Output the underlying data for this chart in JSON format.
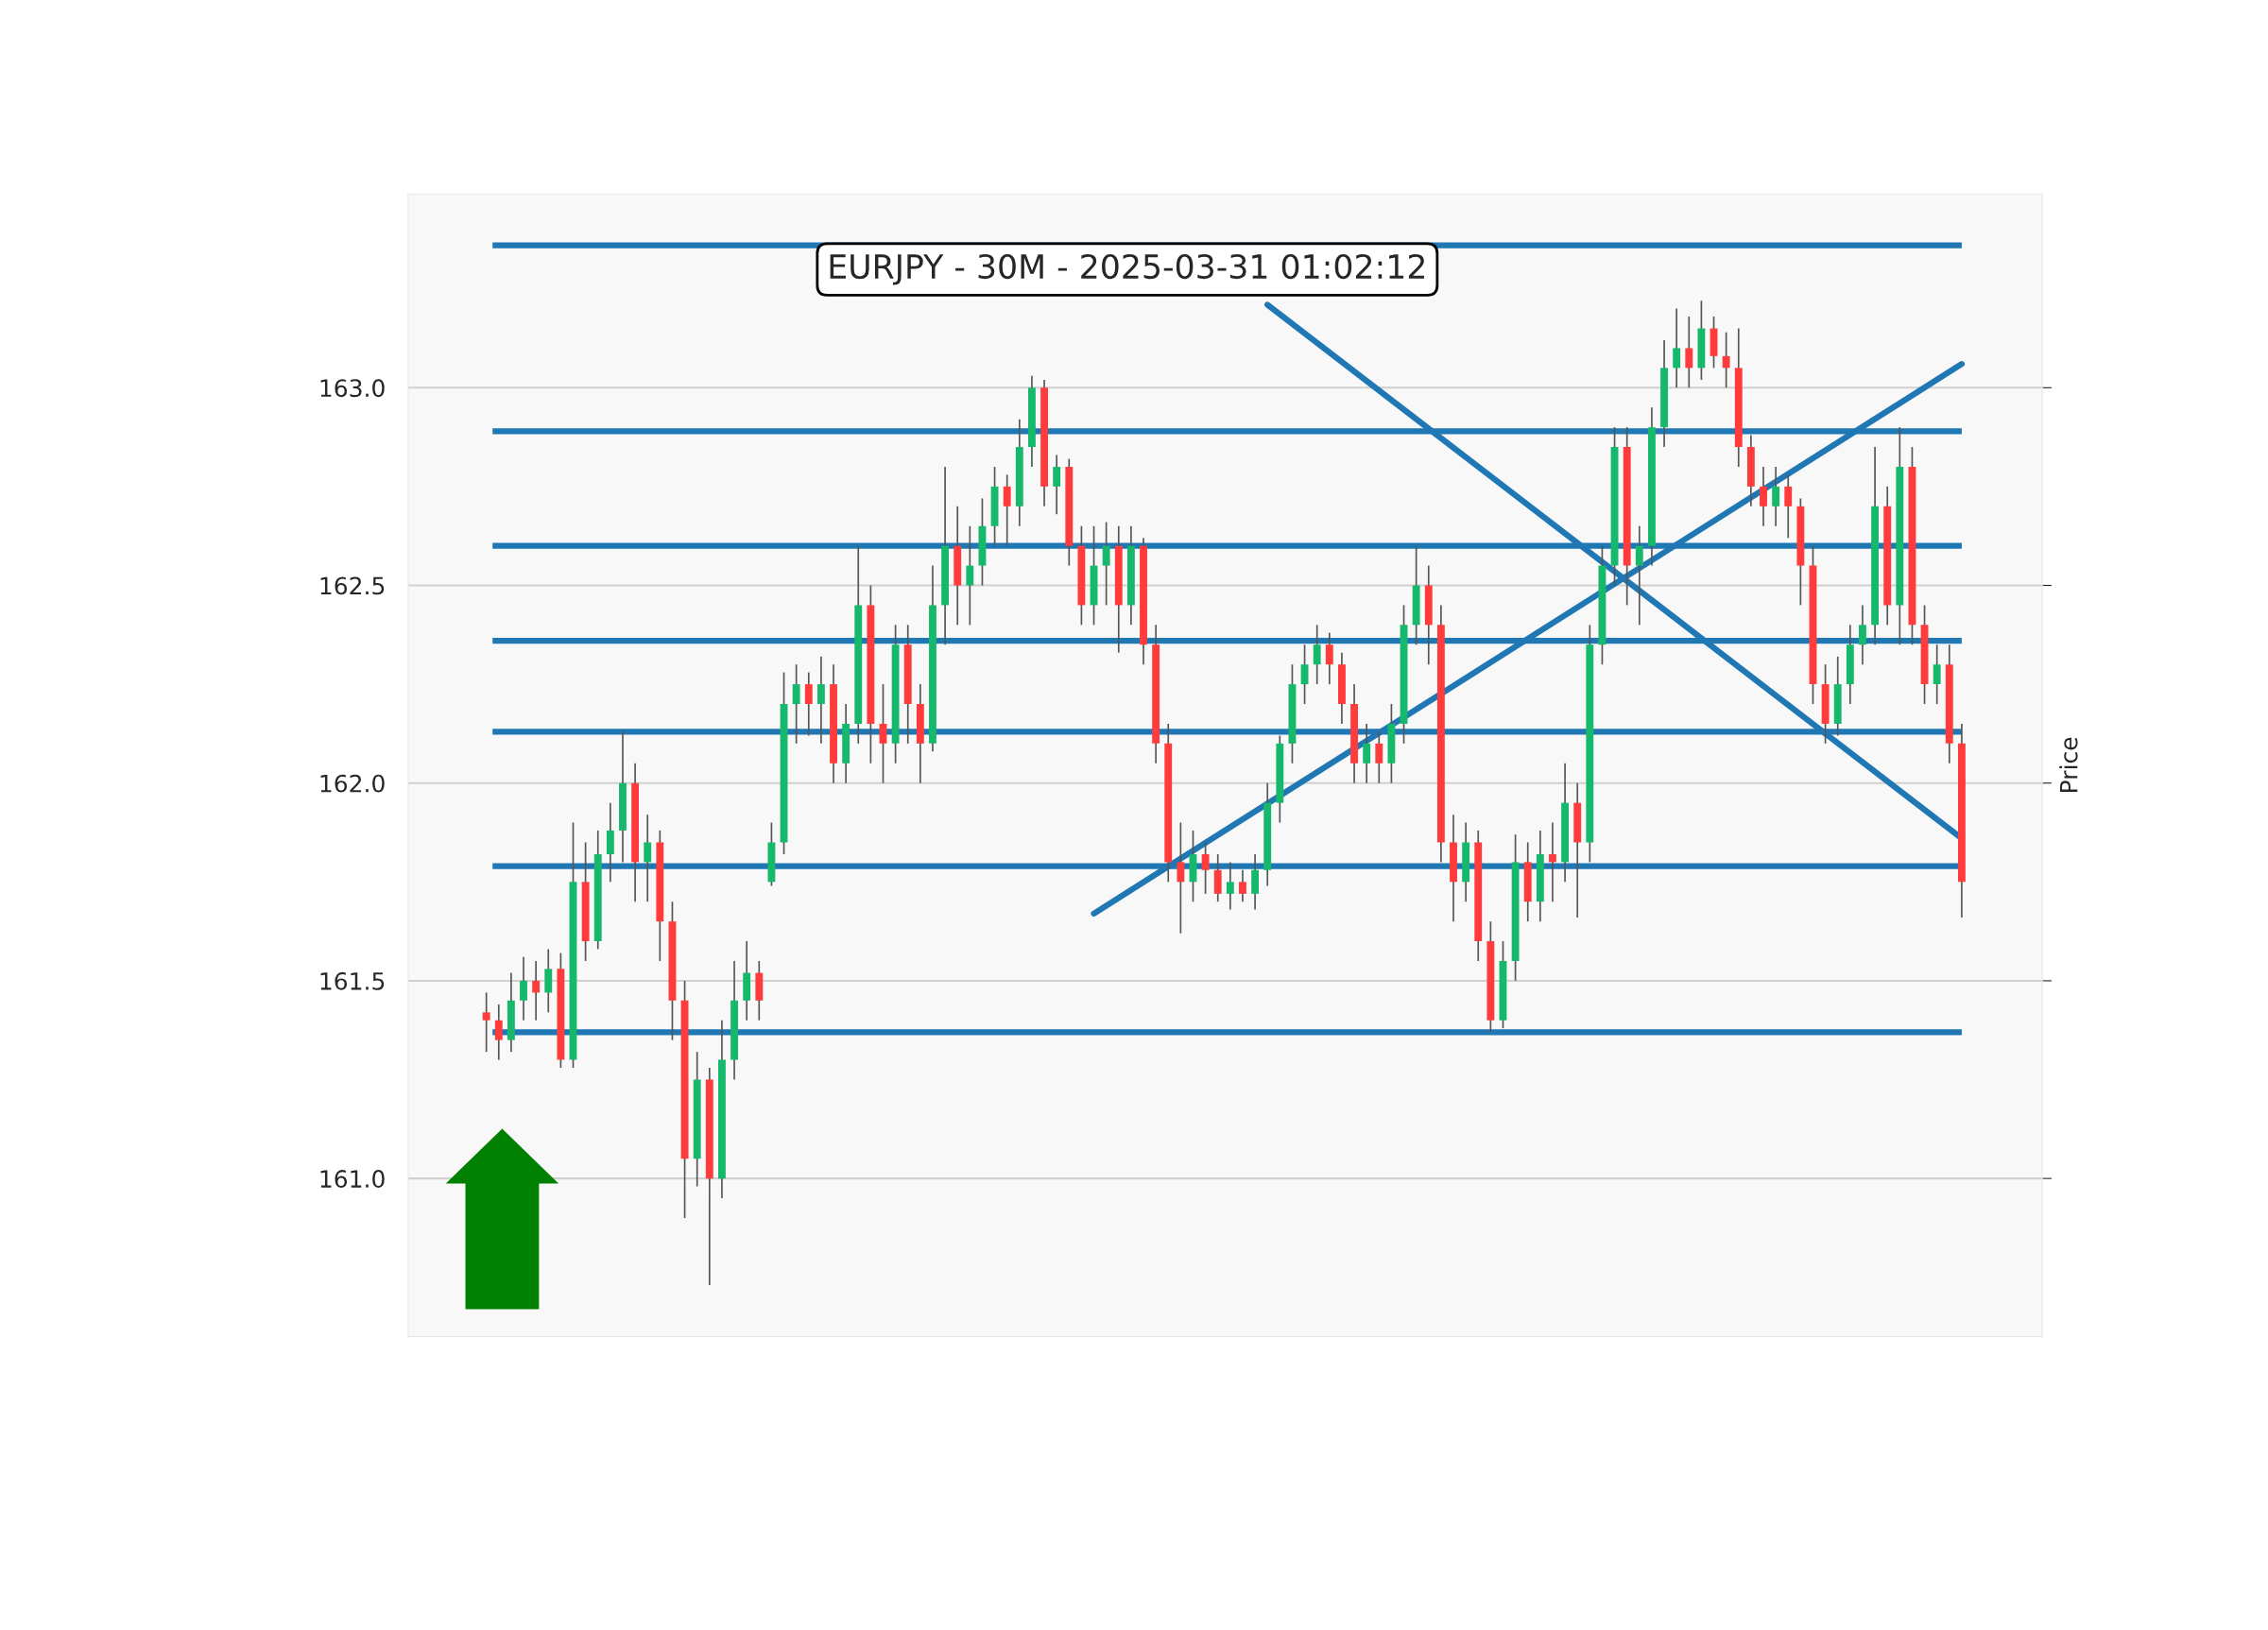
{
  "chart_data": {
    "type": "candlestick",
    "title": "EURJPY - 30M - 2025-03-31 01:02:12",
    "ylabel": "Price",
    "categories": [
      null,
      null,
      null,
      null,
      null,
      null,
      null,
      null,
      null,
      null,
      null,
      null,
      null,
      null,
      null,
      null,
      null,
      null,
      null,
      null,
      null,
      null,
      null,
      null,
      null,
      null,
      null,
      null,
      null,
      null,
      null,
      null,
      null,
      null,
      null,
      null,
      null,
      null,
      null,
      null,
      null,
      null,
      null,
      null,
      null,
      null,
      null,
      null,
      null,
      null,
      null,
      null,
      null,
      null,
      null,
      null,
      null,
      null,
      null,
      null,
      null,
      null,
      null,
      null,
      null,
      null,
      null,
      null,
      null,
      null,
      null,
      null,
      null,
      null,
      null,
      null,
      null,
      null,
      null,
      null,
      null,
      null,
      null,
      null,
      null,
      null,
      null,
      null,
      null,
      null,
      null,
      null,
      null,
      null,
      null,
      null,
      null,
      null,
      null,
      null,
      null,
      null,
      null,
      null,
      null,
      null,
      null,
      null,
      null,
      null,
      null,
      null,
      null,
      null,
      null,
      null,
      null,
      null,
      null,
      null
    ],
    "colors": [
      "#ff3b3b",
      "#ff3b3b",
      "#16b86b",
      "#16b86b",
      "#ff3b3b",
      "#16b86b",
      "#ff3b3b",
      "#16b86b",
      "#ff3b3b",
      "#16b86b",
      "#16b86b",
      "#16b86b",
      "#ff3b3b",
      "#16b86b",
      "#ff3b3b",
      "#ff3b3b",
      "#ff3b3b",
      "#16b86b",
      "#ff3b3b",
      "#16b86b",
      "#16b86b",
      "#16b86b",
      "#ff3b3b",
      "#16b86b",
      "#16b86b",
      "#16b86b",
      "#ff3b3b",
      "#16b86b",
      "#ff3b3b",
      "#16b86b",
      "#16b86b",
      "#ff3b3b",
      "#ff3b3b",
      "#16b86b",
      "#ff3b3b",
      "#ff3b3b",
      "#16b86b",
      "#16b86b",
      "#ff3b3b",
      "#16b86b",
      "#16b86b",
      "#16b86b",
      "#ff3b3b",
      "#16b86b",
      "#16b86b",
      "#ff3b3b",
      "#16b86b",
      "#ff3b3b",
      "#ff3b3b",
      "#16b86b",
      "#16b86b",
      "#ff3b3b",
      "#16b86b",
      "#ff3b3b",
      "#ff3b3b",
      "#ff3b3b",
      "#ff3b3b",
      "#16b86b",
      "#ff3b3b",
      "#ff3b3b",
      "#16b86b",
      "#ff3b3b",
      "#16b86b",
      "#16b86b",
      "#16b86b",
      "#16b86b",
      "#16b86b",
      "#16b86b",
      "#ff3b3b",
      "#ff3b3b",
      "#ff3b3b",
      "#16b86b",
      "#ff3b3b",
      "#16b86b",
      "#16b86b",
      "#16b86b",
      "#ff3b3b",
      "#ff3b3b",
      "#ff3b3b",
      "#16b86b",
      "#ff3b3b",
      "#ff3b3b",
      "#16b86b",
      "#16b86b",
      "#ff3b3b",
      "#16b86b",
      "#ff3b3b",
      "#16b86b",
      "#ff3b3b",
      "#16b86b",
      "#16b86b",
      "#16b86b",
      "#ff3b3b",
      "#16b86b",
      "#16b86b",
      "#16b86b",
      "#16b86b",
      "#ff3b3b",
      "#16b86b",
      "#ff3b3b",
      "#ff3b3b",
      "#ff3b3b",
      "#ff3b3b",
      "#ff3b3b",
      "#16b86b",
      "#ff3b3b",
      "#ff3b3b",
      "#ff3b3b",
      "#ff3b3b",
      "#16b86b",
      "#16b86b",
      "#16b86b",
      "#16b86b",
      "#ff3b3b",
      "#16b86b",
      "#ff3b3b",
      "#ff3b3b",
      "#16b86b",
      "#ff3b3b",
      "#ff3b3b"
    ],
    "ohlc": [
      [
        161.42,
        161.47,
        161.32,
        161.4
      ],
      [
        161.4,
        161.44,
        161.3,
        161.35
      ],
      [
        161.35,
        161.52,
        161.32,
        161.45
      ],
      [
        161.45,
        161.56,
        161.4,
        161.5
      ],
      [
        161.5,
        161.55,
        161.4,
        161.47
      ],
      [
        161.47,
        161.58,
        161.42,
        161.53
      ],
      [
        161.53,
        161.57,
        161.28,
        161.3
      ],
      [
        161.3,
        161.9,
        161.28,
        161.75
      ],
      [
        161.75,
        161.85,
        161.55,
        161.6
      ],
      [
        161.6,
        161.88,
        161.58,
        161.82
      ],
      [
        161.82,
        161.95,
        161.75,
        161.88
      ],
      [
        161.88,
        162.13,
        161.8,
        162.0
      ],
      [
        162.0,
        162.05,
        161.7,
        161.8
      ],
      [
        161.8,
        161.92,
        161.7,
        161.85
      ],
      [
        161.85,
        161.88,
        161.55,
        161.65
      ],
      [
        161.65,
        161.7,
        161.35,
        161.45
      ],
      [
        161.45,
        161.5,
        160.9,
        161.05
      ],
      [
        161.05,
        161.32,
        160.98,
        161.25
      ],
      [
        161.25,
        161.28,
        160.73,
        161.0
      ],
      [
        161.0,
        161.4,
        160.95,
        161.3
      ],
      [
        161.3,
        161.55,
        161.25,
        161.45
      ],
      [
        161.45,
        161.6,
        161.4,
        161.52
      ],
      [
        161.52,
        161.55,
        161.4,
        161.45
      ],
      [
        161.75,
        161.9,
        161.74,
        161.85
      ],
      [
        161.85,
        162.28,
        161.82,
        162.2
      ],
      [
        162.2,
        162.3,
        162.1,
        162.25
      ],
      [
        162.25,
        162.28,
        162.12,
        162.2
      ],
      [
        162.2,
        162.32,
        162.1,
        162.25
      ],
      [
        162.25,
        162.3,
        162.0,
        162.05
      ],
      [
        162.05,
        162.2,
        162.0,
        162.15
      ],
      [
        162.15,
        162.6,
        162.1,
        162.45
      ],
      [
        162.45,
        162.5,
        162.05,
        162.15
      ],
      [
        162.15,
        162.25,
        162.0,
        162.1
      ],
      [
        162.1,
        162.4,
        162.05,
        162.35
      ],
      [
        162.35,
        162.4,
        162.1,
        162.2
      ],
      [
        162.2,
        162.25,
        162.0,
        162.1
      ],
      [
        162.1,
        162.55,
        162.08,
        162.45
      ],
      [
        162.45,
        162.8,
        162.35,
        162.6
      ],
      [
        162.6,
        162.7,
        162.4,
        162.5
      ],
      [
        162.5,
        162.65,
        162.4,
        162.55
      ],
      [
        162.55,
        162.72,
        162.5,
        162.65
      ],
      [
        162.65,
        162.8,
        162.6,
        162.75
      ],
      [
        162.75,
        162.78,
        162.6,
        162.7
      ],
      [
        162.7,
        162.92,
        162.65,
        162.85
      ],
      [
        162.85,
        163.03,
        162.8,
        163.0
      ],
      [
        163.0,
        163.02,
        162.7,
        162.75
      ],
      [
        162.75,
        162.83,
        162.68,
        162.8
      ],
      [
        162.8,
        162.82,
        162.55,
        162.6
      ],
      [
        162.6,
        162.65,
        162.4,
        162.45
      ],
      [
        162.45,
        162.65,
        162.4,
        162.55
      ],
      [
        162.55,
        162.66,
        162.45,
        162.6
      ],
      [
        162.6,
        162.65,
        162.33,
        162.45
      ],
      [
        162.45,
        162.65,
        162.4,
        162.6
      ],
      [
        162.6,
        162.62,
        162.3,
        162.35
      ],
      [
        162.35,
        162.4,
        162.05,
        162.1
      ],
      [
        162.1,
        162.15,
        161.75,
        161.8
      ],
      [
        161.8,
        161.9,
        161.62,
        161.75
      ],
      [
        161.75,
        161.88,
        161.7,
        161.82
      ],
      [
        161.82,
        161.85,
        161.72,
        161.78
      ],
      [
        161.78,
        161.82,
        161.7,
        161.72
      ],
      [
        161.72,
        161.8,
        161.68,
        161.75
      ],
      [
        161.75,
        161.78,
        161.7,
        161.72
      ],
      [
        161.72,
        161.82,
        161.68,
        161.78
      ],
      [
        161.78,
        162.0,
        161.74,
        161.95
      ],
      [
        161.95,
        162.12,
        161.9,
        162.1
      ],
      [
        162.1,
        162.3,
        162.05,
        162.25
      ],
      [
        162.25,
        162.35,
        162.2,
        162.3
      ],
      [
        162.3,
        162.4,
        162.25,
        162.35
      ],
      [
        162.35,
        162.38,
        162.25,
        162.3
      ],
      [
        162.3,
        162.33,
        162.15,
        162.2
      ],
      [
        162.2,
        162.25,
        162.0,
        162.05
      ],
      [
        162.05,
        162.15,
        162.0,
        162.1
      ],
      [
        162.1,
        162.13,
        162.0,
        162.05
      ],
      [
        162.05,
        162.2,
        162.0,
        162.15
      ],
      [
        162.15,
        162.45,
        162.1,
        162.4
      ],
      [
        162.4,
        162.6,
        162.35,
        162.5
      ],
      [
        162.5,
        162.55,
        162.3,
        162.4
      ],
      [
        162.4,
        162.45,
        161.8,
        161.85
      ],
      [
        161.85,
        161.92,
        161.65,
        161.75
      ],
      [
        161.75,
        161.9,
        161.7,
        161.85
      ],
      [
        161.85,
        161.88,
        161.55,
        161.6
      ],
      [
        161.6,
        161.65,
        161.37,
        161.4
      ],
      [
        161.4,
        161.6,
        161.38,
        161.55
      ],
      [
        161.55,
        161.87,
        161.5,
        161.8
      ],
      [
        161.8,
        161.85,
        161.65,
        161.7
      ],
      [
        161.7,
        161.88,
        161.65,
        161.82
      ],
      [
        161.82,
        161.9,
        161.7,
        161.8
      ],
      [
        161.8,
        162.05,
        161.75,
        161.95
      ],
      [
        161.95,
        162.0,
        161.66,
        161.85
      ],
      [
        161.85,
        162.4,
        161.8,
        162.35
      ],
      [
        162.35,
        162.6,
        162.3,
        162.55
      ],
      [
        162.55,
        162.9,
        162.5,
        162.85
      ],
      [
        162.85,
        162.9,
        162.45,
        162.55
      ],
      [
        162.55,
        162.65,
        162.4,
        162.6
      ],
      [
        162.6,
        162.95,
        162.55,
        162.9
      ],
      [
        162.9,
        163.12,
        162.85,
        163.05
      ],
      [
        163.05,
        163.2,
        163.0,
        163.1
      ],
      [
        163.1,
        163.18,
        163.0,
        163.05
      ],
      [
        163.05,
        163.22,
        163.02,
        163.15
      ],
      [
        163.15,
        163.18,
        163.05,
        163.08
      ],
      [
        163.08,
        163.14,
        163.0,
        163.05
      ],
      [
        163.05,
        163.15,
        162.8,
        162.85
      ],
      [
        162.85,
        162.88,
        162.7,
        162.75
      ],
      [
        162.75,
        162.8,
        162.65,
        162.7
      ],
      [
        162.7,
        162.8,
        162.65,
        162.75
      ],
      [
        162.75,
        162.78,
        162.62,
        162.7
      ],
      [
        162.7,
        162.72,
        162.45,
        162.55
      ],
      [
        162.55,
        162.6,
        162.2,
        162.25
      ],
      [
        162.25,
        162.3,
        162.1,
        162.15
      ],
      [
        162.15,
        162.32,
        162.12,
        162.25
      ],
      [
        162.25,
        162.4,
        162.2,
        162.35
      ],
      [
        162.35,
        162.45,
        162.3,
        162.4
      ],
      [
        162.4,
        162.85,
        162.35,
        162.7
      ],
      [
        162.7,
        162.75,
        162.4,
        162.45
      ],
      [
        162.45,
        162.9,
        162.35,
        162.8
      ],
      [
        162.8,
        162.85,
        162.35,
        162.4
      ],
      [
        162.4,
        162.45,
        162.2,
        162.25
      ],
      [
        162.25,
        162.35,
        162.2,
        162.3
      ],
      [
        162.3,
        162.35,
        162.05,
        162.1
      ],
      [
        162.1,
        162.15,
        161.66,
        161.75
      ]
    ],
    "series": [
      {
        "type": "line",
        "color": "#1f77b4",
        "values": [
          null,
          null,
          null,
          null,
          null,
          null,
          null,
          null,
          null,
          null,
          null,
          null,
          null,
          null,
          null,
          null,
          null,
          null,
          null,
          null,
          null,
          null,
          null,
          null,
          null,
          null,
          null,
          null,
          null,
          null,
          null,
          null,
          null,
          null,
          null,
          null,
          null,
          null,
          null,
          null,
          null,
          null,
          null,
          null,
          null,
          null,
          null,
          null,
          null,
          161.67,
          null,
          null,
          null,
          null,
          null,
          null,
          null,
          null,
          null,
          null,
          null,
          null,
          null,
          null,
          null,
          null,
          null,
          null,
          null,
          null,
          null,
          null,
          null,
          null,
          null,
          null,
          null,
          null,
          null,
          null,
          null,
          null,
          null,
          null,
          null,
          null,
          null,
          null,
          null,
          null,
          null,
          null,
          null,
          null,
          null,
          null,
          null,
          null,
          null,
          null,
          null,
          null,
          null,
          null,
          null,
          null,
          null,
          null,
          null,
          null,
          null,
          null,
          null,
          null,
          null,
          null,
          null,
          null,
          null,
          163.06
        ]
      },
      {
        "type": "line",
        "color": "#1f77b4",
        "values": [
          null,
          null,
          null,
          null,
          null,
          null,
          null,
          null,
          null,
          null,
          null,
          null,
          null,
          null,
          null,
          null,
          null,
          null,
          null,
          null,
          null,
          null,
          null,
          null,
          null,
          null,
          null,
          null,
          null,
          null,
          null,
          null,
          null,
          null,
          null,
          null,
          null,
          null,
          null,
          null,
          null,
          null,
          null,
          null,
          null,
          null,
          null,
          null,
          null,
          null,
          null,
          null,
          null,
          null,
          null,
          null,
          null,
          null,
          null,
          null,
          null,
          null,
          null,
          163.21,
          null,
          null,
          null,
          null,
          null,
          null,
          null,
          null,
          null,
          null,
          null,
          null,
          null,
          null,
          null,
          null,
          null,
          null,
          null,
          null,
          null,
          null,
          null,
          null,
          null,
          null,
          null,
          null,
          null,
          null,
          null,
          null,
          null,
          null,
          null,
          null,
          null,
          null,
          null,
          null,
          null,
          null,
          null,
          null,
          null,
          null,
          null,
          null,
          null,
          null,
          null,
          null,
          null,
          null,
          null,
          161.86
        ]
      }
    ],
    "ref_lines": [
      {
        "axis": "y",
        "value": 163.36,
        "color": "#1f77b4"
      },
      {
        "axis": "y",
        "value": 162.89,
        "color": "#1f77b4"
      },
      {
        "axis": "y",
        "value": 162.6,
        "color": "#1f77b4"
      },
      {
        "axis": "y",
        "value": 162.36,
        "color": "#1f77b4"
      },
      {
        "axis": "y",
        "value": 162.13,
        "color": "#1f77b4"
      },
      {
        "axis": "y",
        "value": 161.79,
        "color": "#1f77b4"
      },
      {
        "axis": "y",
        "value": 161.37,
        "color": "#1f77b4"
      }
    ],
    "ylim": [
      160.6,
      163.49
    ],
    "yticks": [
      {
        "value": 161,
        "label": "161.0"
      },
      {
        "value": 161.5,
        "label": "161.5"
      },
      {
        "value": 162,
        "label": "162.0"
      },
      {
        "value": 162.5,
        "label": "162.5"
      },
      {
        "value": 163,
        "label": "163.0"
      }
    ],
    "grid": "y"
  }
}
